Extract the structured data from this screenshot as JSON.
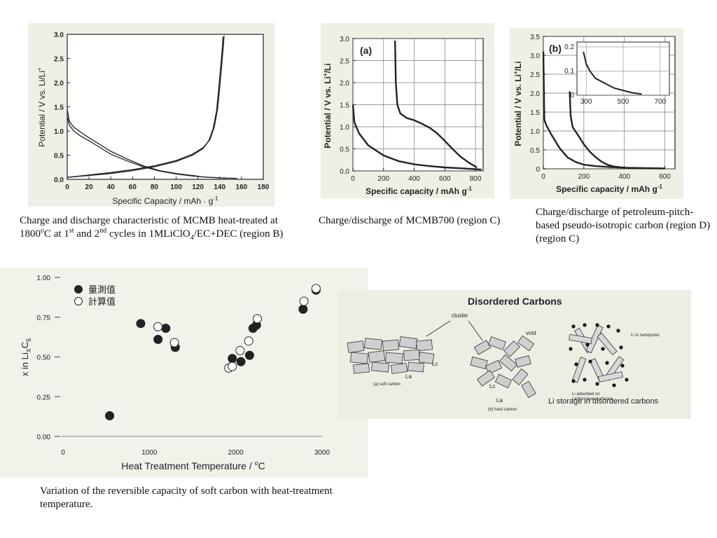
{
  "charts": [
    {
      "id": "mcmb1800",
      "type": "line",
      "xlabel": "Specific Capacity / mAh · g",
      "xlabel_sup": "-1",
      "ylabel": "Potential / V vs. Li/Li",
      "ylabel_sup": "+",
      "xlim": [
        0,
        180
      ],
      "ylim": [
        0,
        3.0
      ],
      "xticks": [
        0,
        20,
        40,
        60,
        80,
        100,
        120,
        140,
        160,
        180
      ],
      "yticks": [
        "0.0",
        "0.5",
        "1.0",
        "1.5",
        "2.0",
        "2.5",
        "3.0"
      ],
      "yticks_num": [
        0,
        0.5,
        1.0,
        1.5,
        2.0,
        2.5,
        3.0
      ],
      "color": "#222222",
      "series": [
        {
          "x": [
            0,
            2,
            6,
            12,
            20,
            30,
            40,
            55,
            70,
            85,
            100,
            115,
            125,
            140,
            146
          ],
          "y": [
            1.45,
            1.2,
            1.08,
            0.98,
            0.86,
            0.72,
            0.58,
            0.42,
            0.28,
            0.18,
            0.12,
            0.08,
            0.05,
            0.03,
            0.02
          ]
        },
        {
          "x": [
            0,
            2,
            6,
            12,
            20,
            30,
            40,
            55,
            70,
            85,
            100,
            115,
            125,
            140,
            156
          ],
          "y": [
            1.3,
            1.12,
            1.0,
            0.9,
            0.8,
            0.66,
            0.52,
            0.38,
            0.26,
            0.17,
            0.11,
            0.07,
            0.05,
            0.03,
            0.02
          ]
        },
        {
          "x": [
            0,
            20,
            40,
            60,
            80,
            100,
            115,
            125,
            130,
            134,
            137,
            139,
            141,
            142.5,
            143
          ],
          "y": [
            0.04,
            0.08,
            0.12,
            0.18,
            0.26,
            0.37,
            0.5,
            0.64,
            0.8,
            1.05,
            1.4,
            1.85,
            2.35,
            2.75,
            2.95
          ]
        },
        {
          "x": [
            0,
            20,
            40,
            60,
            80,
            100,
            115,
            125,
            131,
            135,
            138,
            140,
            142,
            143.5,
            144
          ],
          "y": [
            0.04,
            0.09,
            0.14,
            0.2,
            0.28,
            0.39,
            0.52,
            0.66,
            0.82,
            1.08,
            1.45,
            1.9,
            2.4,
            2.8,
            2.97
          ]
        }
      ]
    },
    {
      "id": "mcmb700",
      "type": "line",
      "label": "(a)",
      "xlabel": "Specific capacity / mAh g",
      "xlabel_sup": "-1",
      "ylabel": "Potential / V   vs. Li",
      "ylabel_sup": "+",
      "ylabel_tail": "/Li",
      "xlim": [
        0,
        850
      ],
      "ylim": [
        0,
        3.0
      ],
      "xticks": [
        0,
        200,
        400,
        600,
        800
      ],
      "yticks": [
        "0.0",
        "0.5",
        "1.0",
        "1.5",
        "2.0",
        "2.5",
        "3.0"
      ],
      "yticks_num": [
        0,
        0.5,
        1.0,
        1.5,
        2.0,
        2.5,
        3.0
      ],
      "color": "#222222",
      "series": [
        {
          "x": [
            0,
            10,
            40,
            100,
            200,
            300,
            400,
            500,
            600,
            700,
            800,
            840
          ],
          "y": [
            1.5,
            1.1,
            0.85,
            0.58,
            0.35,
            0.22,
            0.15,
            0.11,
            0.08,
            0.06,
            0.04,
            0.03
          ]
        },
        {
          "x": [
            275,
            280,
            290,
            310,
            350,
            400,
            450,
            500,
            550,
            600,
            650,
            700,
            760,
            810
          ],
          "y": [
            2.95,
            2.0,
            1.5,
            1.3,
            1.2,
            1.15,
            1.07,
            0.98,
            0.85,
            0.68,
            0.5,
            0.33,
            0.18,
            0.08
          ]
        }
      ]
    },
    {
      "id": "petroleum",
      "type": "line",
      "label": "(b)",
      "xlabel": "Specific capacity / mAh g",
      "xlabel_sup": "-1",
      "ylabel": "Potential / V   vs. Li",
      "ylabel_sup": "+",
      "ylabel_tail": "/Li",
      "xlim": [
        0,
        650
      ],
      "ylim": [
        0,
        3.5
      ],
      "xticks": [
        0,
        200,
        400,
        600
      ],
      "yticks": [
        "0",
        "0.5",
        "1.0",
        "1.5",
        "2.0",
        "2.5",
        "3.0",
        "3.5"
      ],
      "yticks_num": [
        0,
        0.5,
        1.0,
        1.5,
        2.0,
        2.5,
        3.0,
        3.5
      ],
      "color": "#222222",
      "series": [
        {
          "x": [
            0,
            5,
            15,
            40,
            80,
            120,
            160,
            200,
            260,
            320,
            400,
            500,
            600
          ],
          "y": [
            3.1,
            1.3,
            1.15,
            0.9,
            0.55,
            0.3,
            0.18,
            0.11,
            0.07,
            0.05,
            0.03,
            0.02,
            0.01
          ]
        },
        {
          "x": [
            130,
            135,
            145,
            170,
            200,
            230,
            260,
            290,
            320,
            350,
            400,
            450
          ],
          "y": [
            2.05,
            1.4,
            1.1,
            0.9,
            0.65,
            0.45,
            0.3,
            0.18,
            0.1,
            0.06,
            0.03,
            0.02
          ]
        }
      ],
      "inset": {
        "xlim": [
          250,
          750
        ],
        "ylim": [
          0,
          0.22
        ],
        "xticks": [
          300,
          500,
          700
        ],
        "yticks": [
          "0",
          "0.1",
          "0.2"
        ],
        "yticks_num": [
          0,
          0.1,
          0.2
        ],
        "series": [
          {
            "x": [
              285,
              300,
              320,
              350,
              400,
              450,
              500,
              550,
              600
            ],
            "y": [
              0.18,
              0.13,
              0.1,
              0.07,
              0.05,
              0.03,
              0.02,
              0.01,
              0.005
            ]
          }
        ]
      }
    },
    {
      "id": "softcarbon",
      "type": "scatter",
      "xlabel": "Heat Treatment Temperature / ",
      "xlabel_sup": "o",
      "xlabel_tail": "C",
      "ylabel": "x in Li",
      "ylabel_sub1": "X",
      "ylabel_mid": "C",
      "ylabel_sub2": "6",
      "xlim": [
        0,
        3000
      ],
      "ylim": [
        0,
        1.0
      ],
      "xticks": [
        0,
        1000,
        2000,
        3000
      ],
      "yticks": [
        "0.00",
        "0.25",
        "0.50",
        "0.75",
        "1.00"
      ],
      "yticks_num": [
        0,
        0.25,
        0.5,
        0.75,
        1.0
      ],
      "legend": [
        "量測值",
        "計算值"
      ],
      "legend_position": "top-left",
      "series": [
        {
          "name": "量測值",
          "filled": true,
          "x": [
            540,
            900,
            1100,
            1190,
            1300,
            1960,
            2060,
            2160,
            2200,
            2240,
            2780,
            2930
          ],
          "y": [
            0.13,
            0.71,
            0.61,
            0.68,
            0.56,
            0.49,
            0.47,
            0.51,
            0.68,
            0.7,
            0.8,
            0.92
          ]
        },
        {
          "name": "計算值",
          "filled": false,
          "x": [
            1100,
            1290,
            1920,
            1960,
            2050,
            2150,
            2250,
            2790,
            2930
          ],
          "y": [
            0.69,
            0.59,
            0.43,
            0.44,
            0.54,
            0.6,
            0.74,
            0.85,
            0.93
          ]
        }
      ]
    }
  ],
  "diagram": {
    "title": "Disordered Carbons",
    "cluster_label": "cluster",
    "void_label": "void",
    "lc1": "Lc",
    "la1": "La",
    "lc2": "Lc",
    "la2": "La",
    "soft_caption": "(a) soft carbon",
    "hard_caption": "(b) hard carbon",
    "nanopores_label": "Li in nanopores",
    "adsorbed_label1": "Li adsorbed on",
    "adsorbed_label2": "carbon layer surfaces",
    "storage_caption": "Li storage in disordered carbons"
  },
  "captions": {
    "c1": {
      "a": "Charge and discharge characteristic of MCMB heat-treated at 1800",
      "sup1": "o",
      "b": "C at 1",
      "sup2": "st",
      "c": " and 2",
      "sup3": "nd",
      "d": " cycles in 1MLiClO",
      "sub1": "4",
      "e": "/EC+DEC (region B)"
    },
    "c2": "Charge/discharge of MCMB700 (region C)",
    "c3": "Charge/discharge of petroleum-pitch-based pseudo-isotropic carbon (region D) (region C)",
    "c4": "Variation of the reversible capacity of soft carbon with heat-treatment temperature."
  }
}
